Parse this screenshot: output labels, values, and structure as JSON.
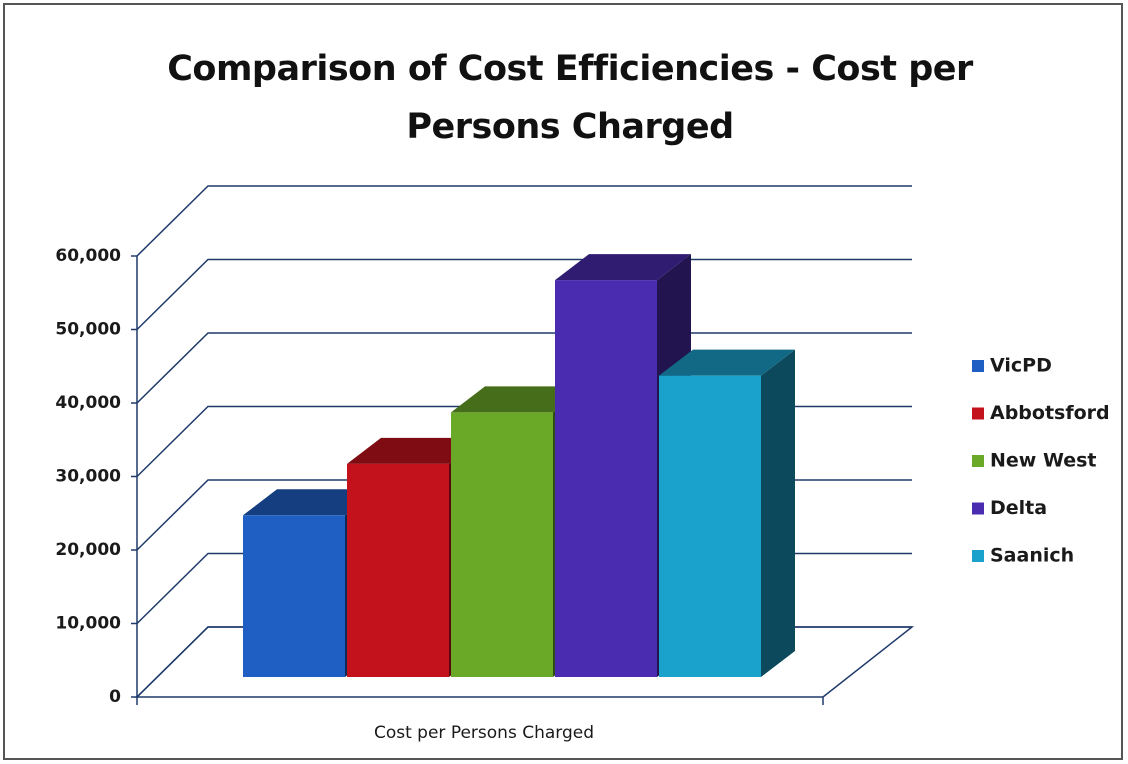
{
  "chart_data": {
    "type": "bar3d",
    "title": "Comparison of Cost Efficiencies - Cost per Persons Charged",
    "categories": [
      "Cost per Persons Charged"
    ],
    "series": [
      {
        "name": "VicPD",
        "color": "#1f5fc4",
        "values": [
          22000
        ]
      },
      {
        "name": "Abbotsford",
        "color": "#c4121c",
        "values": [
          29000
        ]
      },
      {
        "name": "New West",
        "color": "#6aa828",
        "values": [
          36000
        ]
      },
      {
        "name": "Delta",
        "color": "#4a2cb0",
        "values": [
          54000
        ]
      },
      {
        "name": "Saanich",
        "color": "#1aa2cc",
        "values": [
          41000
        ]
      }
    ],
    "ylim": [
      0,
      60000
    ],
    "yticks": [
      0,
      {
        "value": 10000,
        "label": "10,000"
      },
      {
        "value": 20000,
        "label": "20,000"
      },
      {
        "value": 30000,
        "label": "30,000"
      },
      {
        "value": 40000,
        "label": "40,000"
      },
      {
        "value": 50000,
        "label": "50,000"
      },
      {
        "value": 60000,
        "label": "60,000"
      }
    ],
    "grid": true,
    "legend": "right"
  }
}
